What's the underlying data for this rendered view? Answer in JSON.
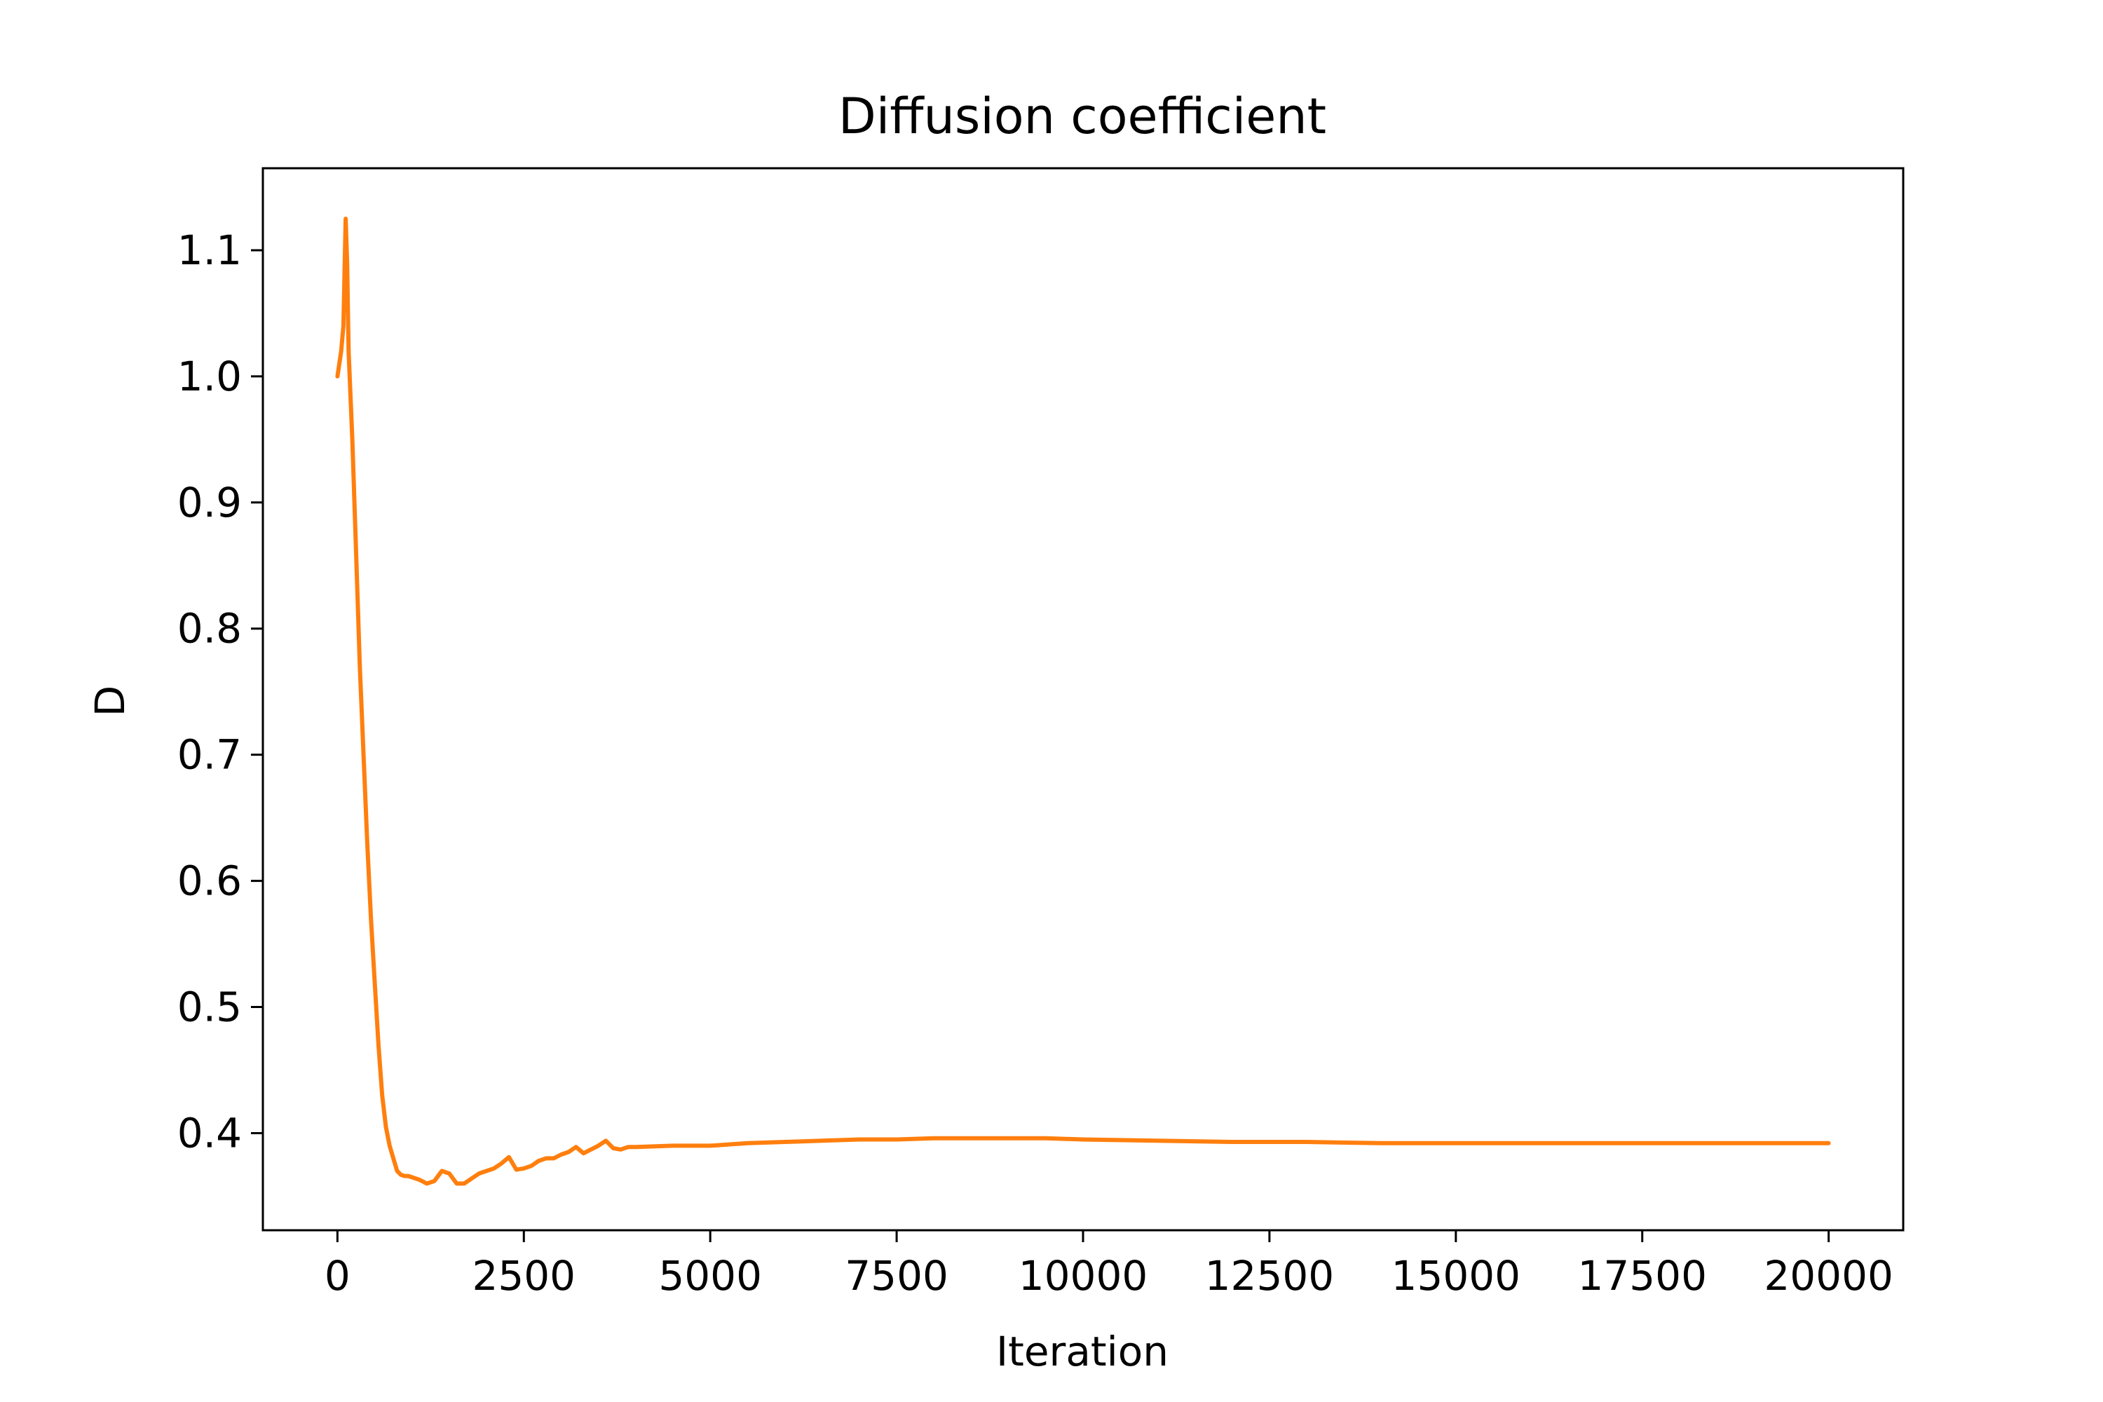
{
  "chart_data": {
    "type": "line",
    "title": "Diffusion coefficient",
    "xlabel": "Iteration",
    "ylabel": "D",
    "xlim": [
      -1000,
      21000
    ],
    "ylim": [
      0.323,
      1.165
    ],
    "xticks": [
      0,
      2500,
      5000,
      7500,
      10000,
      12500,
      15000,
      17500,
      20000
    ],
    "xtick_labels": [
      "0",
      "2500",
      "5000",
      "7500",
      "10000",
      "12500",
      "15000",
      "17500",
      "20000"
    ],
    "yticks": [
      0.4,
      0.5,
      0.6,
      0.7,
      0.8,
      0.9,
      1.0,
      1.1
    ],
    "ytick_labels": [
      "0.4",
      "0.5",
      "0.6",
      "0.7",
      "0.8",
      "0.9",
      "1.0",
      "1.1"
    ],
    "grid": false,
    "series": [
      {
        "color": "#ff7f0e",
        "x": [
          0,
          50,
          80,
          110,
          130,
          150,
          200,
          250,
          300,
          350,
          400,
          450,
          500,
          550,
          600,
          650,
          700,
          750,
          800,
          850,
          900,
          950,
          1000,
          1100,
          1200,
          1300,
          1400,
          1500,
          1600,
          1700,
          1800,
          1900,
          2000,
          2100,
          2200,
          2300,
          2400,
          2500,
          2600,
          2700,
          2800,
          2900,
          3000,
          3100,
          3200,
          3300,
          3400,
          3500,
          3600,
          3700,
          3800,
          3900,
          4000,
          4500,
          5000,
          5500,
          6000,
          6500,
          7000,
          7500,
          8000,
          8500,
          9000,
          9500,
          10000,
          11000,
          12000,
          13000,
          14000,
          15000,
          16000,
          17000,
          18000,
          19000,
          20000
        ],
        "y": [
          1.0,
          1.02,
          1.04,
          1.125,
          1.09,
          1.02,
          0.95,
          0.86,
          0.77,
          0.7,
          0.63,
          0.57,
          0.52,
          0.47,
          0.43,
          0.405,
          0.39,
          0.38,
          0.37,
          0.367,
          0.366,
          0.366,
          0.365,
          0.363,
          0.36,
          0.362,
          0.37,
          0.368,
          0.36,
          0.36,
          0.364,
          0.368,
          0.37,
          0.372,
          0.376,
          0.381,
          0.371,
          0.372,
          0.374,
          0.378,
          0.38,
          0.38,
          0.383,
          0.385,
          0.389,
          0.384,
          0.387,
          0.39,
          0.394,
          0.388,
          0.387,
          0.389,
          0.389,
          0.39,
          0.39,
          0.392,
          0.393,
          0.394,
          0.395,
          0.395,
          0.396,
          0.396,
          0.396,
          0.396,
          0.395,
          0.394,
          0.393,
          0.393,
          0.392,
          0.392,
          0.392,
          0.392,
          0.392,
          0.392,
          0.392
        ]
      }
    ]
  }
}
